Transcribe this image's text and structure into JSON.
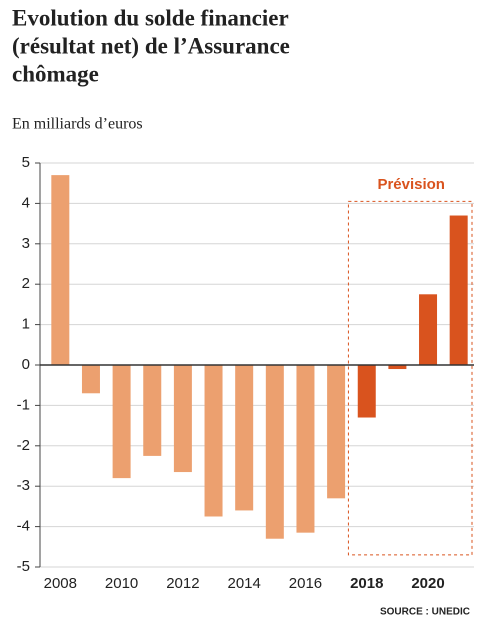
{
  "chart_data": {
    "type": "bar",
    "title": [
      "Evolution du solde financier",
      "(résultat net) de l’Assurance",
      "chômage"
    ],
    "subtitle": "En milliards d’euros",
    "source": "SOURCE : UNEDIC",
    "categories": [
      "2008",
      null,
      "2010",
      null,
      "2012",
      null,
      "2014",
      null,
      "2016",
      null,
      "2018",
      null,
      "2020",
      null
    ],
    "values": [
      4.7,
      -0.7,
      -2.8,
      -2.25,
      -2.65,
      -3.75,
      -3.6,
      -4.3,
      -4.15,
      -3.3,
      -1.3,
      -0.1,
      1.75,
      3.7
    ],
    "colors": [
      "#eca06f",
      "#eca06f",
      "#eca06f",
      "#eca06f",
      "#eca06f",
      "#eca06f",
      "#eca06f",
      "#eca06f",
      "#eca06f",
      "#eca06f",
      "#d9531e",
      "#d9531e",
      "#d9531e",
      "#d9531e"
    ],
    "forecast": {
      "label": "Prévision",
      "from": "2018",
      "color": "#d9531e"
    },
    "ylim": [
      -5,
      5
    ],
    "yticks": [
      -5,
      -4,
      -3,
      -2,
      -1,
      0,
      1,
      2,
      3,
      4,
      5
    ],
    "grid": true
  }
}
